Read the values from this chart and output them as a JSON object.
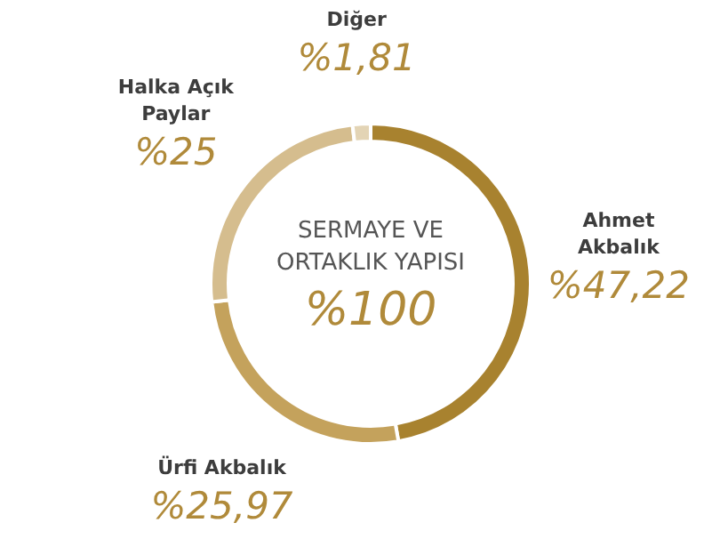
{
  "chart_data": {
    "type": "donut",
    "title": "SERMAYE VE ORTAKLIK YAPISI",
    "categories": [
      "Ahmet Akbalık",
      "Ürfi Akbalık",
      "Halka Açık Paylar",
      "Diğer"
    ],
    "values": [
      47.22,
      25.97,
      25,
      1.81
    ],
    "colors": [
      "#a8822f",
      "#c4a25c",
      "#d5bd8e",
      "#e3d4b5"
    ],
    "value_labels": [
      "%47,22",
      "%25,97",
      "%25",
      "%1,81"
    ],
    "annotations": [
      "%100"
    ]
  }
}
